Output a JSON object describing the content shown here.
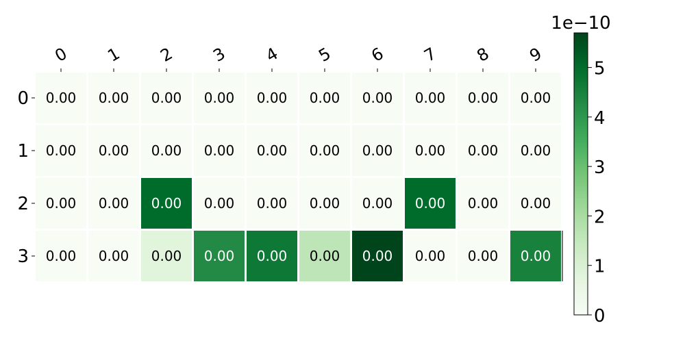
{
  "chart_data": {
    "type": "heatmap",
    "title": "",
    "xlabel": "",
    "ylabel": "",
    "x_categories": [
      "0",
      "1",
      "2",
      "3",
      "4",
      "5",
      "6",
      "7",
      "8",
      "9"
    ],
    "y_categories": [
      "0",
      "1",
      "2",
      "3"
    ],
    "cell_labels": [
      [
        "0.00",
        "0.00",
        "0.00",
        "0.00",
        "0.00",
        "0.00",
        "0.00",
        "0.00",
        "0.00",
        "0.00"
      ],
      [
        "0.00",
        "0.00",
        "0.00",
        "0.00",
        "0.00",
        "0.00",
        "0.00",
        "0.00",
        "0.00",
        "0.00"
      ],
      [
        "0.00",
        "0.00",
        "0.00",
        "0.00",
        "0.00",
        "0.00",
        "0.00",
        "0.00",
        "0.00",
        "0.00"
      ],
      [
        "0.00",
        "0.00",
        "0.00",
        "0.00",
        "0.00",
        "0.00",
        "0.00",
        "0.00",
        "0.00",
        "0.00"
      ]
    ],
    "values_x1e10": [
      [
        0,
        0,
        0,
        0,
        0,
        0,
        0,
        0,
        0,
        0
      ],
      [
        0,
        0,
        0,
        0,
        0,
        0,
        0.05,
        0,
        0,
        0
      ],
      [
        0,
        0,
        5.0,
        0,
        0,
        0,
        0,
        5.0,
        0,
        0
      ],
      [
        0,
        0,
        0.8,
        4.3,
        4.7,
        1.6,
        5.7,
        0,
        0,
        4.5
      ]
    ],
    "colormap": "Greens",
    "colorbar": {
      "range": [
        0,
        5.7
      ],
      "ticks": [
        0,
        1,
        2,
        3,
        4,
        5
      ],
      "tick_labels": [
        "0",
        "1",
        "2",
        "3",
        "4",
        "5"
      ],
      "offset_label": "1e−10"
    },
    "x_tick_rotation": "rotated",
    "x_axis_position": "top"
  }
}
